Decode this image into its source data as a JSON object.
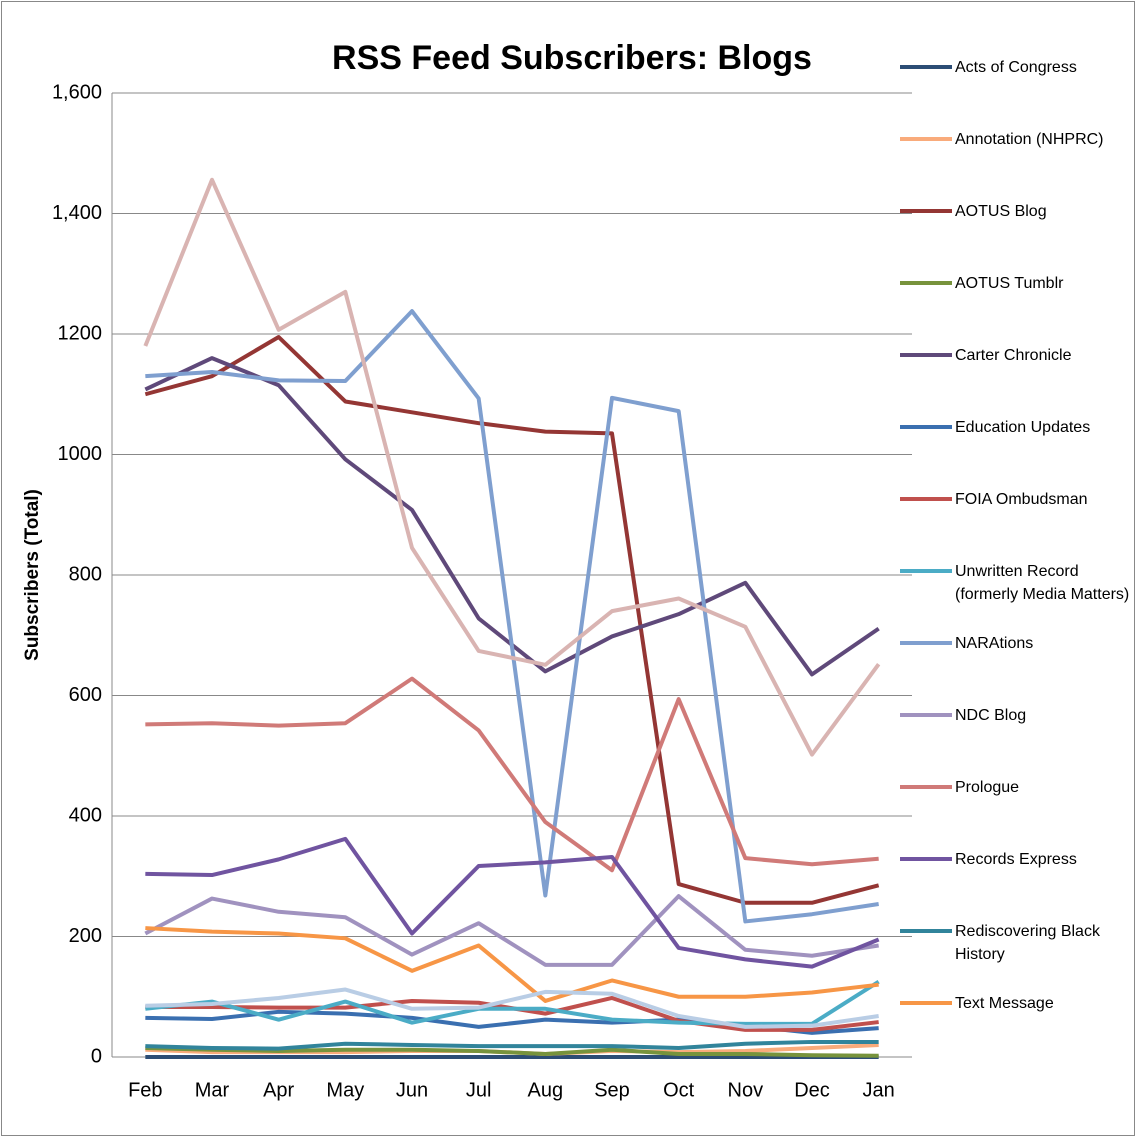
{
  "chart_data": {
    "type": "line",
    "title": "RSS Feed Subscribers: Blogs",
    "y_label": "Subscribers (Total)",
    "categories": [
      "Feb",
      "Mar",
      "Apr",
      "May",
      "Jun",
      "Jul",
      "Aug",
      "Sep",
      "Oct",
      "Nov",
      "Dec",
      "Jan"
    ],
    "ylim": [
      0,
      1600
    ],
    "yticks": [
      0,
      200,
      400,
      600,
      800,
      1000,
      1200,
      {
        "value": 1400,
        "label": "1,400"
      },
      {
        "value": 1600,
        "label": "1,600"
      }
    ],
    "grid": true,
    "series": [
      {
        "name": "Acts of Congress",
        "color": "#2c4d75",
        "values": [
          0,
          0,
          0,
          0,
          0,
          0,
          0,
          0,
          0,
          0,
          0,
          0
        ]
      },
      {
        "name": "Annotation (NHPRC)",
        "color": "#f9ab7b",
        "values": [
          12,
          8,
          8,
          8,
          10,
          10,
          5,
          10,
          8,
          10,
          15,
          20
        ]
      },
      {
        "name": "AOTUS Blog",
        "color": "#943634",
        "values": [
          1100,
          1130,
          1195,
          1088,
          1070,
          1052,
          1038,
          1035,
          287,
          256,
          256,
          285
        ]
      },
      {
        "name": "AOTUS Tumblr",
        "color": "#77933c",
        "values": [
          15,
          12,
          10,
          12,
          12,
          10,
          5,
          12,
          5,
          5,
          3,
          2
        ]
      },
      {
        "name": "Carter Chronicle",
        "color": "#5f497a",
        "values": [
          1108,
          1160,
          1115,
          992,
          908,
          728,
          640,
          698,
          735,
          787,
          635,
          711
        ]
      },
      {
        "name": "Education Updates",
        "color": "#3a6fb0",
        "values": [
          65,
          63,
          75,
          72,
          65,
          50,
          62,
          57,
          62,
          52,
          40,
          48
        ]
      },
      {
        "name": "FOIA Ombudsman",
        "color": "#c0504d",
        "values": [
          83,
          83,
          82,
          82,
          93,
          90,
          72,
          98,
          60,
          45,
          45,
          58
        ]
      },
      {
        "name": "Unwritten Record (formerly Media Matters)",
        "color": "#4bacc6",
        "values": [
          80,
          92,
          62,
          92,
          57,
          80,
          80,
          62,
          57,
          55,
          55,
          125
        ]
      },
      {
        "name": "NARAtions",
        "color": "#7f9fcf",
        "values": [
          1130,
          1137,
          1123,
          1122,
          1238,
          1093,
          268,
          1094,
          1072,
          225,
          237,
          254
        ]
      },
      {
        "name": "NDC Blog",
        "color": "#a092bf",
        "values": [
          205,
          263,
          241,
          232,
          170,
          222,
          153,
          153,
          267,
          178,
          168,
          185
        ]
      },
      {
        "name": "Prologue",
        "color": "#d07a78",
        "values": [
          552,
          554,
          550,
          554,
          628,
          542,
          390,
          310,
          594,
          330,
          320,
          329
        ]
      },
      {
        "name": "Records Express",
        "color": "#7054a0",
        "values": [
          304,
          302,
          328,
          362,
          205,
          317,
          323,
          332,
          181,
          162,
          150,
          195
        ]
      },
      {
        "name": "Rediscovering Black History",
        "color": "#31849b",
        "values": [
          18,
          15,
          14,
          22,
          20,
          18,
          18,
          18,
          15,
          22,
          25,
          25
        ]
      },
      {
        "name": "Text Message",
        "color": "#f79646",
        "values": [
          214,
          208,
          205,
          197,
          143,
          185,
          93,
          127,
          100,
          100,
          107,
          120
        ]
      },
      {
        "name": null,
        "color": "#d9b4b2",
        "values": [
          1180,
          1456,
          1207,
          1270,
          845,
          674,
          651,
          740,
          761,
          714,
          502,
          652
        ]
      },
      {
        "name": null,
        "color": "#b9cde5",
        "values": [
          85,
          88,
          98,
          112,
          80,
          82,
          108,
          105,
          68,
          50,
          52,
          68
        ]
      }
    ]
  }
}
